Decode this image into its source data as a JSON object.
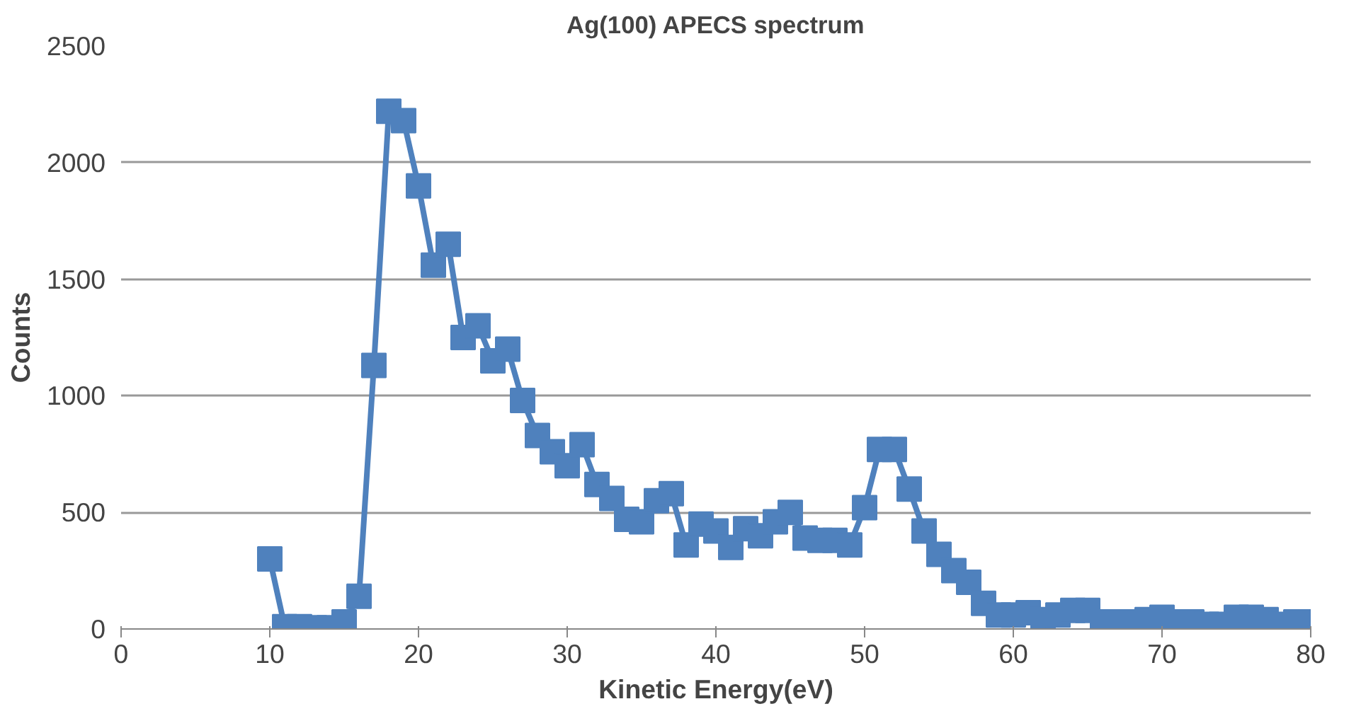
{
  "chart_data": {
    "type": "line",
    "title": "Ag(100) APECS spectrum",
    "xlabel": "Kinetic Energy(eV)",
    "ylabel": "Counts",
    "x": [
      10,
      11,
      12,
      13,
      14,
      15,
      16,
      17,
      18,
      19,
      20,
      21,
      22,
      23,
      24,
      25,
      26,
      27,
      28,
      29,
      30,
      31,
      32,
      33,
      34,
      35,
      36,
      37,
      38,
      39,
      40,
      41,
      42,
      43,
      44,
      45,
      46,
      47,
      48,
      49,
      50,
      51,
      52,
      53,
      54,
      55,
      56,
      57,
      58,
      59,
      60,
      61,
      62,
      63,
      64,
      65,
      66,
      67,
      68,
      69,
      70,
      71,
      72,
      73,
      74,
      75,
      76,
      77,
      78,
      79,
      80
    ],
    "series": [
      {
        "color": "#4f81bd",
        "values": [
          300,
          10,
          10,
          5,
          5,
          30,
          140,
          1130,
          2220,
          2180,
          1900,
          1560,
          1650,
          1250,
          1300,
          1150,
          1200,
          980,
          830,
          760,
          700,
          790,
          620,
          560,
          470,
          460,
          550,
          580,
          360,
          450,
          420,
          350,
          430,
          400,
          460,
          500,
          390,
          380,
          380,
          360,
          520,
          770,
          770,
          600,
          420,
          320,
          250,
          200,
          110,
          60,
          60,
          70,
          40,
          60,
          80,
          80,
          30,
          30,
          30,
          40,
          50,
          30,
          30,
          20,
          20,
          50,
          50,
          40,
          20,
          30,
          30
        ]
      }
    ],
    "xlim": [
      0,
      80
    ],
    "xticks": [
      0,
      10,
      20,
      30,
      40,
      50,
      60,
      70,
      80
    ],
    "ylim": [
      0,
      2500
    ],
    "yticks": [
      0,
      500,
      1000,
      1500,
      2000,
      2500
    ],
    "grid": "y",
    "marker": "square",
    "line_style": "solid"
  }
}
